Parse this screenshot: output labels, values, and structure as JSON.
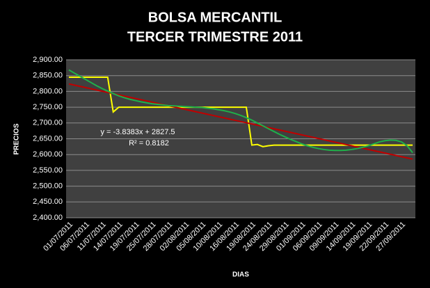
{
  "chart_data": {
    "type": "line",
    "title": "BOLSA MERCANTIL",
    "subtitle": "TERCER TRIMESTRE 2011",
    "x_label": "DIAS",
    "y_label": "PRECIOS",
    "annotations": [
      "y = -3.8383x + 2827.5",
      "R² = 0.8182"
    ],
    "categories": [
      "01/07/2011",
      null,
      null,
      "06/07/2011",
      null,
      null,
      "11/07/2011",
      null,
      null,
      "14/07/2011",
      null,
      null,
      "19/07/2011",
      null,
      null,
      "25/07/2011",
      null,
      null,
      "28/07/2011",
      null,
      null,
      "02/08/2011",
      null,
      null,
      "05/08/2011",
      null,
      null,
      "10/08/2011",
      null,
      null,
      "16/08/2011",
      null,
      null,
      "19/08/2011",
      null,
      null,
      "24/08/2011",
      null,
      null,
      "29/08/2011",
      null,
      null,
      "01/09/2011",
      null,
      null,
      "06/09/2011",
      null,
      null,
      "09/09/2011",
      null,
      null,
      "14/09/2011",
      null,
      null,
      "19/09/2011",
      null,
      null,
      "22/09/2011",
      null,
      null,
      "27/09/2011",
      null,
      null
    ],
    "series": [
      {
        "color": "#ffff00",
        "values": [
          2845,
          2845,
          2845,
          2845,
          2845,
          2845,
          2845,
          2845,
          2735,
          2750,
          2750,
          2750,
          2750,
          2750,
          2750,
          2750,
          2750,
          2750,
          2750,
          2750,
          2750,
          2750,
          2750,
          2750,
          2750,
          2750,
          2750,
          2750,
          2750,
          2750,
          2750,
          2750,
          2750,
          2630,
          2632,
          2625,
          2628,
          2630,
          2630,
          2630,
          2630,
          2630,
          2630,
          2630,
          2630,
          2630,
          2630,
          2630,
          2630,
          2630,
          2630,
          2630,
          2630,
          2630,
          2630,
          2630,
          2630,
          2630,
          2630,
          2630,
          2630,
          2630,
          2630
        ]
      },
      {
        "color": "#c00000",
        "values": [
          2823.7,
          2819.8,
          2816.0,
          2812.2,
          2808.3,
          2804.5,
          2800.6,
          2796.8,
          2793.0,
          2789.1,
          2785.3,
          2781.4,
          2777.6,
          2773.8,
          2769.9,
          2766.1,
          2762.2,
          2758.4,
          2754.6,
          2750.7,
          2746.9,
          2743.0,
          2739.2,
          2735.4,
          2731.5,
          2727.7,
          2723.9,
          2720.0,
          2716.2,
          2712.3,
          2708.5,
          2704.7,
          2700.8,
          2697.0,
          2693.1,
          2689.3,
          2685.5,
          2681.6,
          2677.8,
          2673.9,
          2670.1,
          2666.3,
          2662.4,
          2658.6,
          2654.8,
          2650.9,
          2647.1,
          2643.2,
          2639.4,
          2635.6,
          2631.7,
          2627.9,
          2624.0,
          2620.2,
          2616.4,
          2612.5,
          2608.7,
          2604.9,
          2601.0,
          2597.2,
          2593.3,
          2589.5,
          2585.7
        ]
      },
      {
        "color": "#1fb04a",
        "values": [
          2868,
          2858,
          2848,
          2838,
          2828,
          2818,
          2809,
          2801,
          2793,
          2786,
          2780,
          2775,
          2771,
          2767,
          2764,
          2761,
          2759,
          2757,
          2755,
          2754,
          2753,
          2752,
          2751,
          2750,
          2749,
          2747,
          2745,
          2742,
          2739,
          2735,
          2730,
          2724,
          2717,
          2709,
          2700,
          2691,
          2682,
          2673,
          2664,
          2656,
          2648,
          2641,
          2634,
          2628,
          2623,
          2619,
          2616,
          2614,
          2613,
          2613,
          2614,
          2616,
          2619,
          2623,
          2628,
          2634,
          2640,
          2644,
          2646,
          2645,
          2640,
          2628,
          2606
        ]
      }
    ],
    "ylim": [
      2400,
      2900
    ],
    "yticks": [
      {
        "value": 2400,
        "label": "2,400.00"
      },
      {
        "value": 2450,
        "label": "2,450.00"
      },
      {
        "value": 2500,
        "label": "2,500.00"
      },
      {
        "value": 2550,
        "label": "2,550.00"
      },
      {
        "value": 2600,
        "label": "2,600.00"
      },
      {
        "value": 2650,
        "label": "2,650.00"
      },
      {
        "value": 2700,
        "label": "2,700.00"
      },
      {
        "value": 2750,
        "label": "2,750.00"
      },
      {
        "value": 2800,
        "label": "2,800.00"
      },
      {
        "value": 2850,
        "label": "2,850.00"
      },
      {
        "value": 2900,
        "label": "2,900.00"
      }
    ],
    "grid": true
  }
}
